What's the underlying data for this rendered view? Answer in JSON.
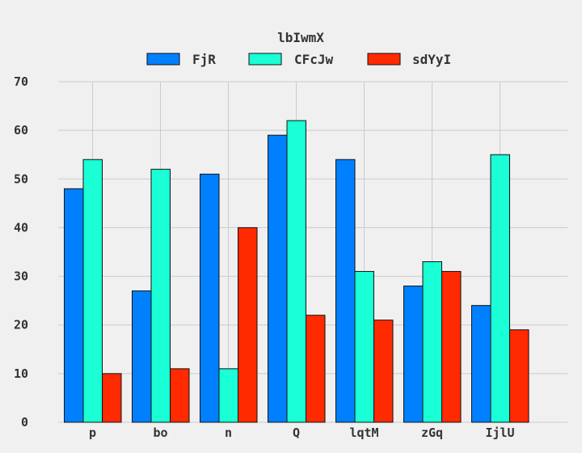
{
  "chart_data": {
    "type": "bar",
    "title": "",
    "legend_title": "lbIwmX",
    "legend_position": "top",
    "xlabel": "",
    "ylabel": "",
    "categories": [
      "p",
      "bo",
      "n",
      "Q",
      "lqtM",
      "zGq",
      "IjlU"
    ],
    "series": [
      {
        "name": "FjR",
        "color": "#0080ff",
        "values": [
          48,
          27,
          51,
          59,
          54,
          28,
          24
        ]
      },
      {
        "name": "CFcJw",
        "color": "#1affd5",
        "values": [
          54,
          52,
          11,
          62,
          31,
          33,
          55
        ]
      },
      {
        "name": "sdYyI",
        "color": "#ff2a00",
        "values": [
          10,
          11,
          40,
          22,
          21,
          31,
          19
        ]
      }
    ],
    "ylim": [
      0,
      70
    ],
    "yticks": [
      0,
      10,
      20,
      30,
      40,
      50,
      60,
      70
    ],
    "grid": true
  }
}
